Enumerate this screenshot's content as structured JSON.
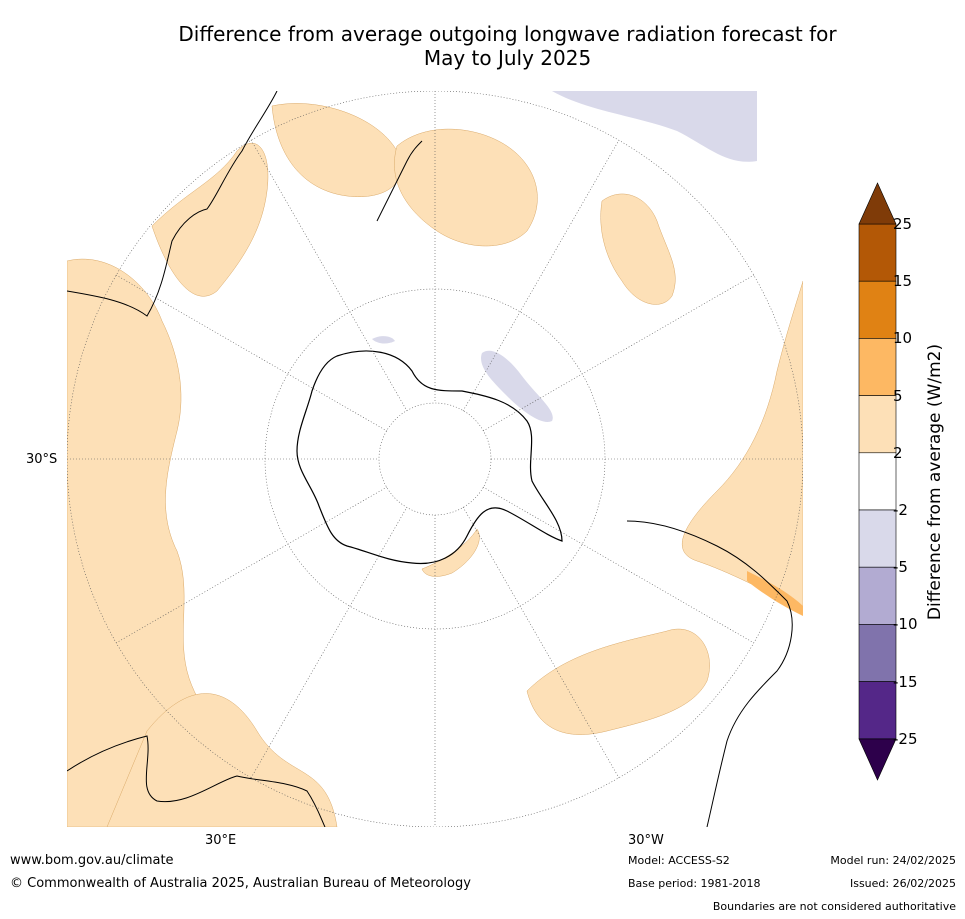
{
  "title": {
    "line1": "Difference from average outgoing longwave radiation forecast for",
    "line2": "May to July 2025"
  },
  "map": {
    "projection": "south-polar-stereographic",
    "coordinate_labels": {
      "lat_30s": "30°S",
      "lon_30e": "30°E",
      "lon_30w": "30°W"
    },
    "colors": {
      "ocean": "#ffffff",
      "anomaly_2_5": "#fde0b7",
      "anomaly_minus2_minus5": "#d9d9ea",
      "anomaly_5_10": "#fdb863",
      "coastline": "#000000",
      "graticule": "#555555"
    }
  },
  "colorbar": {
    "label": "Difference from average (W/m2)",
    "ticks": [
      "25",
      "15",
      "10",
      "5",
      "2",
      "-2",
      "-5",
      "-10",
      "-15",
      "-25"
    ],
    "colors": [
      "#b35806",
      "#e08214",
      "#fdb863",
      "#fde0b7",
      "#ffffff",
      "#d9d9ea",
      "#b2abd2",
      "#8073ac",
      "#542788"
    ],
    "extend_high_color": "#7f3b08",
    "extend_low_color": "#2d004b"
  },
  "footer": {
    "website": "www.bom.gov.au/climate",
    "copyright": "© Commonwealth of Australia 2025, Australian Bureau of Meteorology",
    "model": "Model: ACCESS-S2",
    "base_period": "Base period: 1981-2018",
    "model_run": "Model run: 24/02/2025",
    "issued": "Issued: 26/02/2025",
    "disclaimer": "Boundaries are not considered authoritative"
  }
}
